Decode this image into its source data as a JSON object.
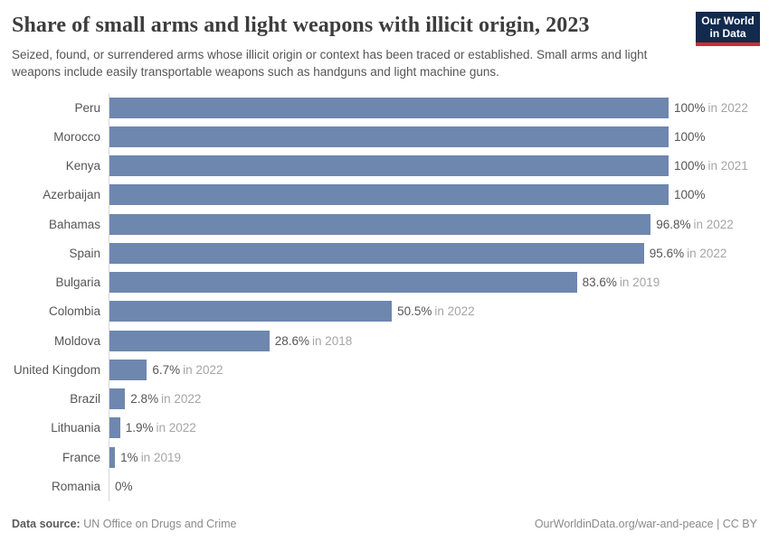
{
  "header": {
    "title": "Share of small arms and light weapons with illicit origin, 2023",
    "subtitle": "Seized, found, or surrendered arms whose illicit origin or context has been traced or established. Small arms and light weapons include easily transportable weapons such as handguns and light machine guns.",
    "logo": {
      "line1": "Our World",
      "line2": "in Data"
    }
  },
  "chart_data": {
    "type": "bar",
    "orientation": "horizontal",
    "title": "Share of small arms and light weapons with illicit origin, 2023",
    "categories": [
      "Peru",
      "Morocco",
      "Kenya",
      "Azerbaijan",
      "Bahamas",
      "Spain",
      "Bulgaria",
      "Colombia",
      "Moldova",
      "United Kingdom",
      "Brazil",
      "Lithuania",
      "France",
      "Romania"
    ],
    "values": [
      100,
      100,
      100,
      100,
      96.8,
      95.6,
      83.6,
      50.5,
      28.6,
      6.7,
      2.8,
      1.9,
      1,
      0
    ],
    "value_labels": [
      "100%",
      "100%",
      "100%",
      "100%",
      "96.8%",
      "95.6%",
      "83.6%",
      "50.5%",
      "28.6%",
      "6.7%",
      "2.8%",
      "1.9%",
      "1%",
      "0%"
    ],
    "year_notes": [
      "in 2022",
      "",
      "in 2021",
      "",
      "in 2022",
      "in 2022",
      "in 2019",
      "in 2022",
      "in 2018",
      "in 2022",
      "in 2022",
      "in 2022",
      "in 2019",
      ""
    ],
    "xlabel": "",
    "ylabel": "",
    "xlim": [
      0,
      100
    ],
    "grid": false,
    "legend": false,
    "bar_color": "#6e87ae",
    "axis_line_color": "#d9d9d9",
    "value_color": "#565656",
    "year_color": "#a5a5a5"
  },
  "footer": {
    "datasource_label": "Data source:",
    "datasource_value": " UN Office on Drugs and Crime",
    "credit": "OurWorldinData.org/war-and-peace | CC BY"
  }
}
